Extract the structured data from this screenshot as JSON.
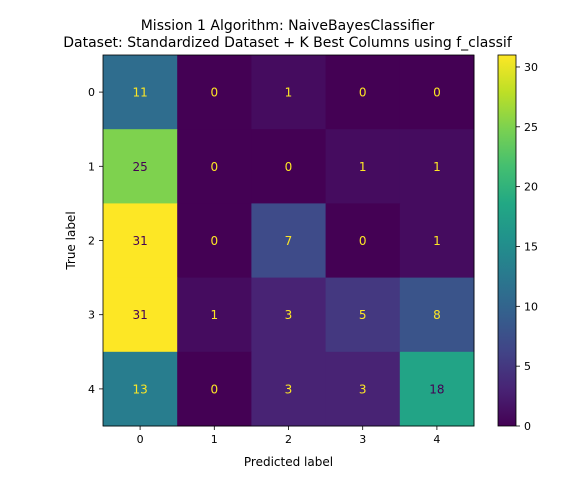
{
  "chart_data": {
    "type": "heatmap",
    "title_line1": "Mission 1 Algorithm: NaiveBayesClassifier",
    "title_line2": "Dataset: Standardized Dataset + K Best Columns using f_classif",
    "xlabel": "Predicted label",
    "ylabel": "True label",
    "x_categories": [
      "0",
      "1",
      "2",
      "3",
      "4"
    ],
    "y_categories": [
      "0",
      "1",
      "2",
      "3",
      "4"
    ],
    "matrix": [
      [
        11,
        0,
        1,
        0,
        0
      ],
      [
        25,
        0,
        0,
        1,
        1
      ],
      [
        31,
        0,
        7,
        0,
        1
      ],
      [
        31,
        1,
        3,
        5,
        8
      ],
      [
        13,
        0,
        3,
        3,
        18
      ]
    ],
    "colormap": "viridis",
    "vmin": 0,
    "vmax": 31,
    "colorbar_ticks": [
      0,
      5,
      10,
      15,
      20,
      25,
      30
    ],
    "text_color_dark_cells": "#fde725",
    "text_color_light_cells": "#440154"
  }
}
